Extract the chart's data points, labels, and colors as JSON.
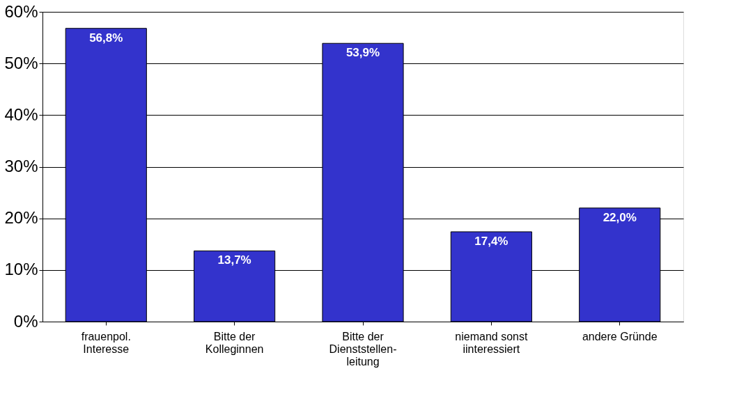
{
  "chart_data": {
    "type": "bar",
    "categories": [
      "frauenpol.\nInteresse",
      "Bitte der\nKolleginnen",
      "Bitte der\nDienststellen-\nleitung",
      "niemand sonst\niinteressiert",
      "andere Gründe"
    ],
    "values": [
      56.8,
      13.7,
      53.9,
      17.4,
      22.0
    ],
    "value_labels": [
      "56,8%",
      "13,7%",
      "53,9%",
      "17,4%",
      "22,0%"
    ],
    "color": "#3333cc",
    "ylim": [
      0,
      60
    ],
    "yticks": [
      {
        "value": 0,
        "label": "0%"
      },
      {
        "value": 10,
        "label": "10%"
      },
      {
        "value": 20,
        "label": "20%"
      },
      {
        "value": 30,
        "label": "30%"
      },
      {
        "value": 40,
        "label": "40%"
      },
      {
        "value": 50,
        "label": "50%"
      },
      {
        "value": 60,
        "label": "60%"
      }
    ],
    "grid": "y"
  }
}
